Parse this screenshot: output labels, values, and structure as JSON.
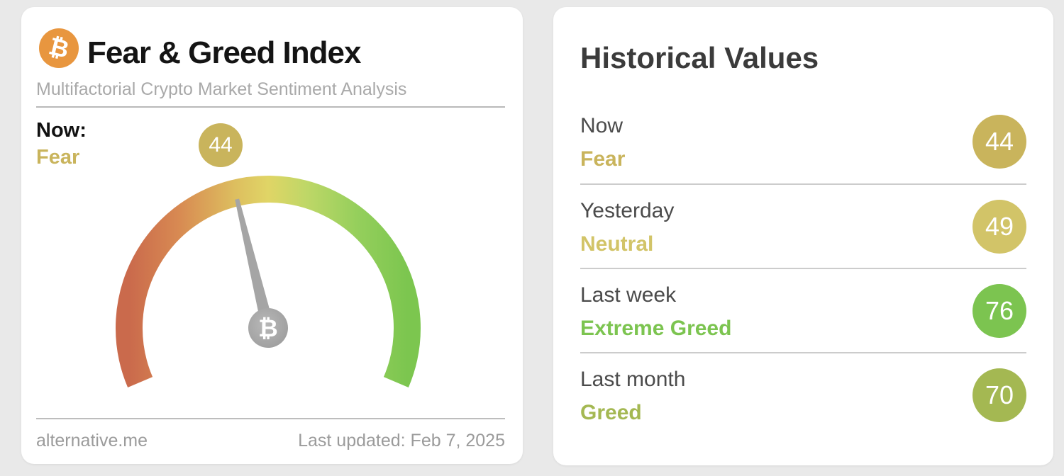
{
  "page": {
    "background_color": "#e9e9e9"
  },
  "gauge_card": {
    "title": "Fear & Greed Index",
    "subtitle": "Multifactorial Crypto Market Sentiment Analysis",
    "bitcoin_symbol": "₿",
    "now_label": "Now:",
    "now_classification": "Fear",
    "now_value": "44",
    "footer_source": "alternative.me",
    "footer_updated": "Last updated: Feb 7, 2025",
    "colors": {
      "bitcoin_orange": "#e8963f",
      "now_color": "#c9b45c",
      "needle_gray": "#a5a5a5"
    }
  },
  "historical_card": {
    "title": "Historical Values",
    "rows": [
      {
        "label": "Now",
        "classification": "Fear",
        "value": "44",
        "color": "#c9b45c"
      },
      {
        "label": "Yesterday",
        "classification": "Neutral",
        "value": "49",
        "color": "#d2c468"
      },
      {
        "label": "Last week",
        "classification": "Extreme Greed",
        "value": "76",
        "color": "#7cc450"
      },
      {
        "label": "Last month",
        "classification": "Greed",
        "value": "70",
        "color": "#a4b852"
      }
    ]
  },
  "chart_data": {
    "type": "gauge",
    "title": "Fear & Greed Index",
    "subtitle": "Multifactorial Crypto Market Sentiment Analysis",
    "value": 44,
    "classification": "Fear",
    "range": [
      0,
      100
    ],
    "arc_sweep_degrees": 226,
    "gradient_stops": [
      "#ca6a4c",
      "#d88a52",
      "#ddbe5f",
      "#e0d566",
      "#bed767",
      "#95cf5c",
      "#7cc64f"
    ],
    "historical": [
      {
        "label": "Now",
        "value": 44,
        "classification": "Fear"
      },
      {
        "label": "Yesterday",
        "value": 49,
        "classification": "Neutral"
      },
      {
        "label": "Last week",
        "value": 76,
        "classification": "Extreme Greed"
      },
      {
        "label": "Last month",
        "value": 70,
        "classification": "Greed"
      }
    ],
    "last_updated": "Feb 7, 2025",
    "source": "alternative.me"
  }
}
